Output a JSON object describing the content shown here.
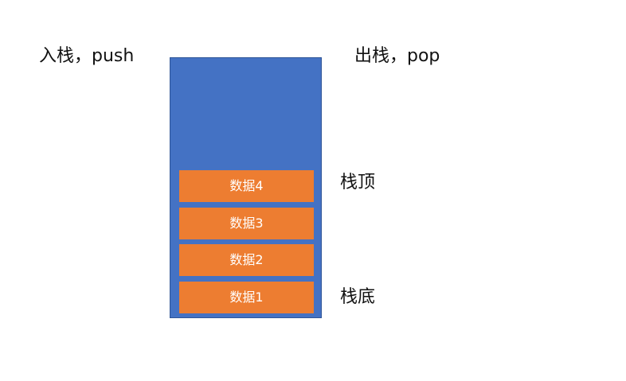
{
  "labels": {
    "push": "入栈，push",
    "pop": "出栈，pop",
    "top": "栈顶",
    "bottom": "栈底"
  },
  "colors": {
    "stack_fill": "#4472c4",
    "item_fill": "#ed7d31"
  },
  "stack": {
    "items": [
      "数据4",
      "数据3",
      "数据2",
      "数据1"
    ]
  }
}
